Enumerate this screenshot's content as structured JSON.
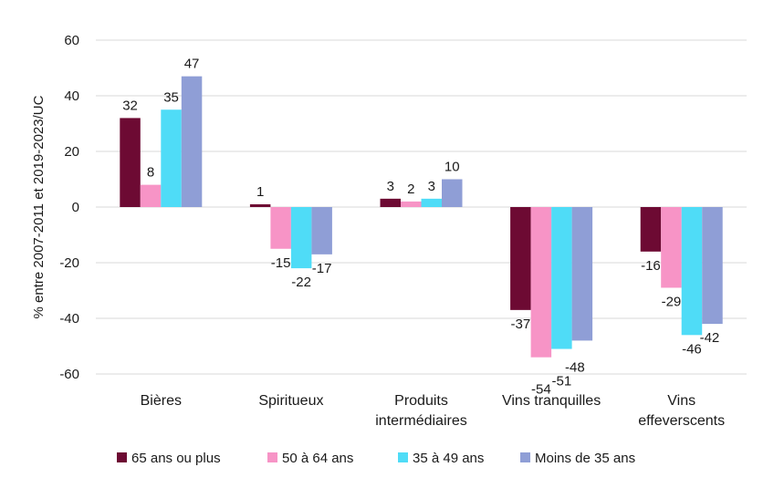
{
  "chart_data": {
    "type": "bar",
    "title": "",
    "xlabel": "",
    "ylabel": "% entre 2007-2011 et 2019-2023/UC",
    "ylim": [
      -60,
      60
    ],
    "yticks": [
      -60,
      -40,
      -20,
      0,
      20,
      40,
      60
    ],
    "grid": true,
    "legend_position": "bottom",
    "categories": [
      [
        "Bières"
      ],
      [
        "Spiritueux"
      ],
      [
        "Produits",
        "intermédiaires"
      ],
      [
        "Vins tranquilles"
      ],
      [
        "Vins",
        "effeverscents"
      ]
    ],
    "series": [
      {
        "name": "65 ans ou plus",
        "color": "#6d0a33",
        "values": [
          32,
          1,
          3,
          -37,
          -16
        ]
      },
      {
        "name": "50 à 64 ans",
        "color": "#f794c6",
        "values": [
          8,
          -15,
          2,
          -54,
          -29
        ]
      },
      {
        "name": "35 à 49 ans",
        "color": "#4fdcf7",
        "values": [
          35,
          -22,
          3,
          -51,
          -46
        ]
      },
      {
        "name": "Moins de 35 ans",
        "color": "#8f9ed6",
        "values": [
          47,
          -17,
          10,
          -48,
          -42
        ]
      }
    ]
  }
}
